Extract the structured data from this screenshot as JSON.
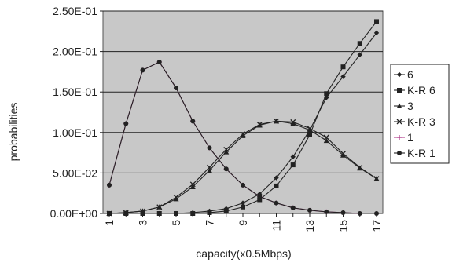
{
  "chart_data": {
    "type": "line",
    "xlabel": "capacity(x0.5Mbps)",
    "ylabel": "probabilities",
    "x": [
      1,
      2,
      3,
      4,
      5,
      6,
      7,
      8,
      9,
      10,
      11,
      12,
      13,
      14,
      15,
      16,
      17
    ],
    "x_tick_labels": [
      "1",
      "3",
      "5",
      "7",
      "9",
      "11",
      "13",
      "15",
      "17"
    ],
    "x_tick_values": [
      1,
      3,
      5,
      7,
      9,
      11,
      13,
      15,
      17
    ],
    "ylim": [
      0,
      0.25
    ],
    "y_ticks": [
      0,
      0.05,
      0.1,
      0.15,
      0.2,
      0.25
    ],
    "y_tick_labels": [
      "0.00E+00",
      "5.00E-02",
      "1.00E-01",
      "1.50E-01",
      "2.00E-01",
      "2.50E-01"
    ],
    "grid": "horizontal",
    "legend_position": "right",
    "plot_background": "#c8c8c8",
    "series": [
      {
        "name": "6",
        "marker": "diamond",
        "color": "#222222",
        "values": [
          0.0,
          0.0,
          0.0,
          0.0,
          0.0,
          0.001,
          0.003,
          0.006,
          0.013,
          0.024,
          0.044,
          0.07,
          0.103,
          0.143,
          0.169,
          0.196,
          0.223
        ]
      },
      {
        "name": "K-R 6",
        "marker": "square",
        "color": "#222222",
        "values": [
          0.0,
          0.0,
          0.0,
          0.0,
          0.0,
          0.0,
          0.001,
          0.003,
          0.008,
          0.017,
          0.034,
          0.06,
          0.097,
          0.148,
          0.181,
          0.21,
          0.237
        ]
      },
      {
        "name": "3",
        "marker": "triangle",
        "color": "#222222",
        "values": [
          0.0,
          0.001,
          0.003,
          0.008,
          0.018,
          0.033,
          0.053,
          0.076,
          0.096,
          0.109,
          0.114,
          0.111,
          0.103,
          0.09,
          0.072,
          0.056,
          0.043
        ]
      },
      {
        "name": "K-R 3",
        "marker": "x",
        "color": "#222222",
        "values": [
          0.0,
          0.001,
          0.003,
          0.008,
          0.02,
          0.036,
          0.057,
          0.079,
          0.098,
          0.11,
          0.114,
          0.113,
          0.105,
          0.094,
          0.074,
          0.057,
          0.043
        ]
      },
      {
        "name": "1",
        "marker": "asterisk",
        "color": "#b03a8a",
        "values": [
          0.035,
          0.111,
          0.177,
          0.187,
          0.155,
          0.114,
          0.081,
          0.055,
          0.035,
          0.021,
          0.013,
          0.007,
          0.004,
          0.002,
          0.001,
          0.0,
          0.0
        ]
      },
      {
        "name": "K-R 1",
        "marker": "circle",
        "color": "#222222",
        "values": [
          0.035,
          0.111,
          0.177,
          0.187,
          0.155,
          0.114,
          0.081,
          0.055,
          0.035,
          0.021,
          0.013,
          0.007,
          0.004,
          0.002,
          0.001,
          0.0,
          0.0
        ]
      }
    ]
  }
}
